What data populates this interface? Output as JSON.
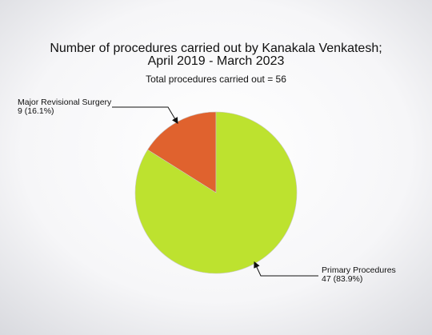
{
  "chart_data": {
    "type": "pie",
    "title": [
      "Number of procedures carried out by Kanakala Venkatesh;",
      "April 2019 - March 2023"
    ],
    "subtitle": "Total procedures carried out = 56",
    "categories": [
      "Major Revisional Surgery",
      "Primary Procedures"
    ],
    "values": [
      9,
      47
    ],
    "value_labels": [
      "9 (16.1%)",
      "47 (83.9%)"
    ],
    "colors": [
      "#e0622e",
      "#bde22f"
    ]
  }
}
